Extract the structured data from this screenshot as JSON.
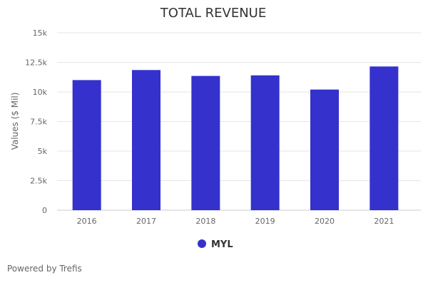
{
  "chart_data": {
    "type": "bar",
    "title": "TOTAL REVENUE",
    "xlabel": "",
    "ylabel": "Values ($ Mil)",
    "categories": [
      "2016",
      "2017",
      "2018",
      "2019",
      "2020",
      "2021"
    ],
    "series": [
      {
        "name": "MYL",
        "values": [
          11000,
          11850,
          11350,
          11400,
          10200,
          12150
        ]
      }
    ],
    "ylim": [
      0,
      15000
    ],
    "yticks": [
      0,
      2500,
      5000,
      7500,
      10000,
      12500,
      15000
    ],
    "ytick_labels": [
      "0",
      "2.5k",
      "5k",
      "7.5k",
      "10k",
      "12.5k",
      "15k"
    ],
    "grid": true,
    "legend_position": "bottom-center",
    "colors": {
      "bar": "#3431cc",
      "grid": "#e6e6e6",
      "axis": "#cccccc"
    }
  },
  "footer": {
    "credit": "Powered by Trefis"
  }
}
